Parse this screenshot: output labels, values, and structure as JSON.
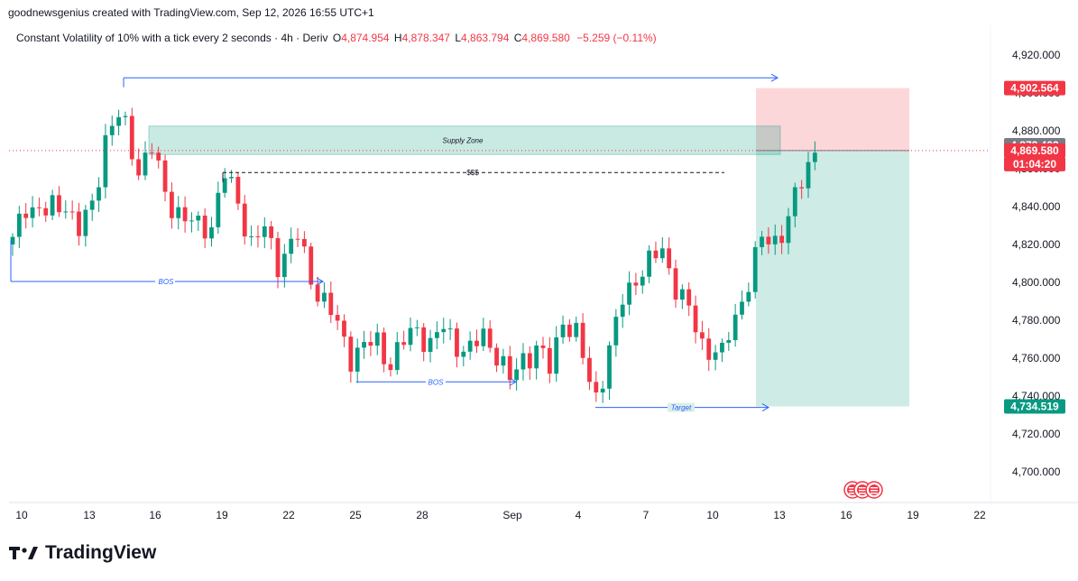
{
  "header": {
    "attribution": "goodnewsgenius created with TradingView.com, Sep 12, 2026 16:55 UTC+1"
  },
  "legend": {
    "symbol": "Constant Volatility of 10% with a tick every 2 seconds · 4h · Deriv",
    "o_label": "O",
    "o_value": "4,874.954",
    "h_label": "H",
    "h_value": "4,878.347",
    "l_label": "L",
    "l_value": "4,863.794",
    "c_label": "C",
    "c_value": "4,869.580",
    "change": "−5.259 (−0.11%)"
  },
  "brand": {
    "name": "TradingView"
  },
  "chart_data": {
    "type": "candlestick",
    "ylim": [
      4690,
      4930
    ],
    "price_ticks": [
      "4,920.000",
      "4,900.000",
      "4,880.000",
      "4,860.000",
      "4,840.000",
      "4,820.000",
      "4,800.000",
      "4,780.000",
      "4,760.000",
      "4,740.000",
      "4,720.000",
      "4,700.000"
    ],
    "price_tick_values": [
      4920,
      4900,
      4880,
      4860,
      4840,
      4820,
      4800,
      4780,
      4760,
      4740,
      4720,
      4700
    ],
    "x_ticks": [
      "10",
      "13",
      "16",
      "19",
      "22",
      "25",
      "28",
      "Sep",
      "4",
      "7",
      "10",
      "13",
      "16",
      "19",
      "22"
    ],
    "price_badges": [
      {
        "text": "4,902.564",
        "value": 4902.564,
        "color": "#f23645"
      },
      {
        "text": "4,872.402",
        "value": 4872.402,
        "color": "#787b86"
      },
      {
        "text": "4,869.580",
        "value": 4869.58,
        "color": "#f23645"
      },
      {
        "text": "01:04:20",
        "value": 4864.5,
        "color": "#f23645"
      },
      {
        "text": "4,734.519",
        "value": 4734.519,
        "color": "#089981"
      }
    ],
    "annotations": {
      "supply_zone": "Supply Zone",
      "liquidity": "$$$",
      "bos_1": "BOS",
      "bos_2": "BOS",
      "target": "Target"
    },
    "anchors": [
      [
        0,
        4820
      ],
      [
        2,
        4840
      ],
      [
        5,
        4835
      ],
      [
        8,
        4845
      ],
      [
        10,
        4828
      ],
      [
        12,
        4840
      ],
      [
        14,
        4875
      ],
      [
        16,
        4885
      ],
      [
        17,
        4880
      ],
      [
        19,
        4862
      ],
      [
        21,
        4872
      ],
      [
        23,
        4848
      ],
      [
        26,
        4830
      ],
      [
        28,
        4828
      ],
      [
        30,
        4832
      ],
      [
        32,
        4858
      ],
      [
        34,
        4845
      ],
      [
        36,
        4820
      ],
      [
        38,
        4825
      ],
      [
        40,
        4810
      ],
      [
        43,
        4825
      ],
      [
        45,
        4805
      ],
      [
        47,
        4790
      ],
      [
        49,
        4775
      ],
      [
        51,
        4760
      ],
      [
        53,
        4765
      ],
      [
        55,
        4770
      ],
      [
        57,
        4760
      ],
      [
        59,
        4768
      ],
      [
        61,
        4775
      ],
      [
        63,
        4765
      ],
      [
        65,
        4775
      ],
      [
        67,
        4770
      ],
      [
        69,
        4765
      ],
      [
        71,
        4772
      ],
      [
        73,
        4762
      ],
      [
        75,
        4745
      ],
      [
        77,
        4760
      ],
      [
        79,
        4768
      ],
      [
        81,
        4755
      ],
      [
        83,
        4782
      ],
      [
        85,
        4770
      ],
      [
        87,
        4745
      ],
      [
        88,
        4740
      ],
      [
        90,
        4765
      ],
      [
        92,
        4792
      ],
      [
        94,
        4805
      ],
      [
        96,
        4808
      ],
      [
        98,
        4815
      ],
      [
        100,
        4798
      ],
      [
        102,
        4785
      ],
      [
        104,
        4770
      ],
      [
        106,
        4765
      ],
      [
        107,
        4760
      ],
      [
        109,
        4780
      ],
      [
        111,
        4800
      ],
      [
        113,
        4822
      ],
      [
        115,
        4825
      ],
      [
        117,
        4835
      ],
      [
        119,
        4852
      ],
      [
        121,
        4870
      ]
    ]
  }
}
